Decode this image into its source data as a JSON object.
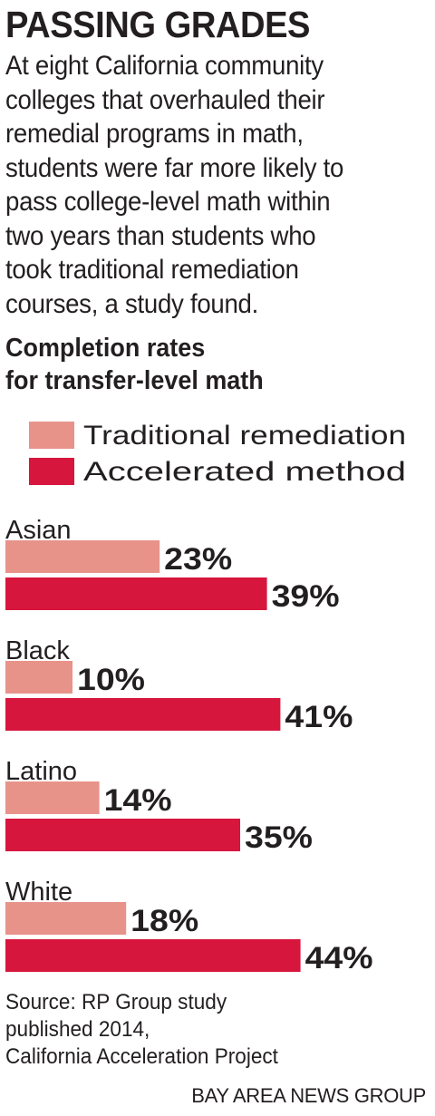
{
  "title": "PASSING GRADES",
  "intro": {
    "lines": [
      "At eight California community",
      "colleges that overhauled their",
      "remedial programs in math,",
      "students were far more likely to",
      "pass college-level math within",
      "two years than students who",
      "took traditional remediation",
      "courses, a study found."
    ]
  },
  "subtitle": {
    "lines": [
      "Completion rates",
      "for transfer-level math"
    ]
  },
  "source": {
    "lines": [
      "Source: RP Group study",
      "published 2014,",
      "California Acceleration Project"
    ]
  },
  "credit": "BAY AREA NEWS GROUP",
  "colors": {
    "traditional": "#e8938a",
    "accelerated": "#d7163e",
    "text": "#231f20"
  },
  "chart_data": {
    "type": "bar",
    "orientation": "horizontal",
    "categories": [
      "Asian",
      "Black",
      "Latino",
      "White"
    ],
    "series": [
      {
        "name": "Traditional remediation",
        "values": [
          23,
          10,
          14,
          18
        ]
      },
      {
        "name": "Accelerated method",
        "values": [
          39,
          41,
          35,
          44
        ]
      }
    ],
    "value_suffix": "%",
    "legend": "top-left",
    "grid": false
  }
}
